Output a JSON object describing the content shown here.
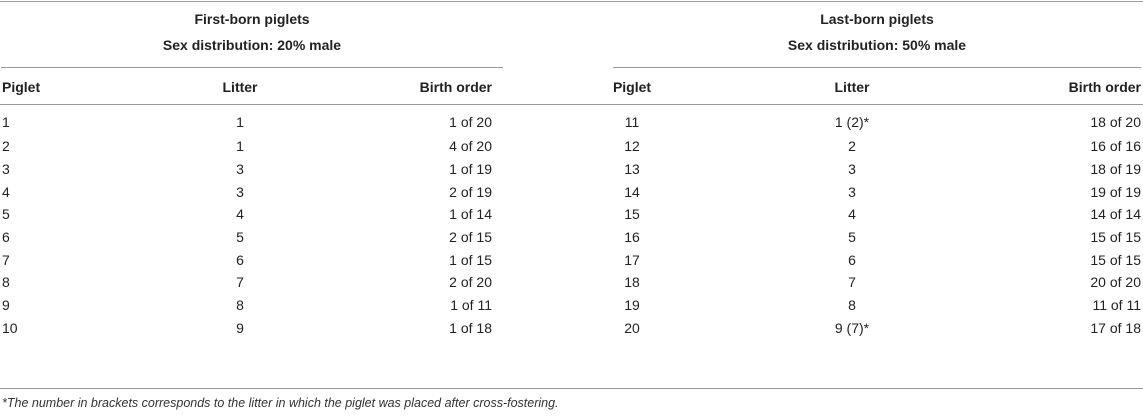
{
  "groups": {
    "first": {
      "title": "First-born piglets",
      "subtitle": "Sex distribution: 20% male"
    },
    "last": {
      "title": "Last-born piglets",
      "subtitle": "Sex distribution: 50% male"
    }
  },
  "columns": {
    "first": [
      "Piglet",
      "Litter",
      "Birth order"
    ],
    "last": [
      "Piglet",
      "Litter",
      "Birth order"
    ]
  },
  "rows": [
    [
      "1",
      "1",
      "1 of 20",
      "11",
      "1 (2)*",
      "18 of 20"
    ],
    [
      "2",
      "1",
      "4 of 20",
      "12",
      "2",
      "16 of 16"
    ],
    [
      "3",
      "3",
      "1 of 19",
      "13",
      "3",
      "18 of 19"
    ],
    [
      "4",
      "3",
      "2 of 19",
      "14",
      "3",
      "19 of 19"
    ],
    [
      "5",
      "4",
      "1 of 14",
      "15",
      "4",
      "14 of 14"
    ],
    [
      "6",
      "5",
      "2 of 15",
      "16",
      "5",
      "15 of 15"
    ],
    [
      "7",
      "6",
      "1 of 15",
      "17",
      "6",
      "15 of 15"
    ],
    [
      "8",
      "7",
      "2 of 20",
      "18",
      "7",
      "20 of 20"
    ],
    [
      "9",
      "8",
      "1 of 11",
      "19",
      "8",
      "11 of 11"
    ],
    [
      "10",
      "9",
      "1 of 18",
      "20",
      "9 (7)*",
      "17 of 18"
    ]
  ],
  "footnote": "*The number in brackets corresponds to the litter in which the piglet was placed after cross-fostering."
}
